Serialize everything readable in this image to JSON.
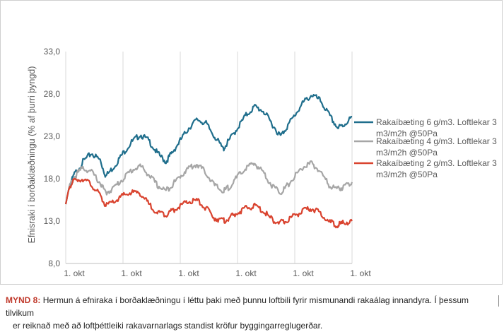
{
  "chart_data": {
    "type": "line",
    "title": "",
    "ylabel": "Efnisraki í borðaklæðningu (% af þurri þyngd)",
    "xlabel": "",
    "ylim": [
      8.0,
      33.0
    ],
    "yticks": [
      8.0,
      13.0,
      18.0,
      23.0,
      28.0,
      33.0
    ],
    "ytick_labels": [
      "8,0",
      "13,0",
      "18,0",
      "23,0",
      "28,0",
      "33,0"
    ],
    "xlim": [
      0,
      5
    ],
    "xticks": [
      0,
      1,
      2,
      3,
      4,
      5
    ],
    "xtick_labels": [
      "1. okt",
      "1. okt",
      "1. okt",
      "1. okt",
      "1. okt",
      "1. okt"
    ],
    "grid": "vertical",
    "legend": "right",
    "series": [
      {
        "name": "Rakaíbæting 6 g/m3. Loftlekar 3 m3/m2h @50Pa",
        "color": "#1f6e8c",
        "x": [
          0,
          0.06,
          0.15,
          0.3,
          0.45,
          0.6,
          0.7,
          0.85,
          1.0,
          1.15,
          1.3,
          1.45,
          1.6,
          1.75,
          1.85,
          2.0,
          2.15,
          2.3,
          2.45,
          2.6,
          2.75,
          2.85,
          3.0,
          3.15,
          3.3,
          3.45,
          3.6,
          3.75,
          3.85,
          4.0,
          4.15,
          4.3,
          4.45,
          4.6,
          4.75,
          4.85,
          5.0
        ],
        "y": [
          15.0,
          17.0,
          18.5,
          20.0,
          21.0,
          20.2,
          18.3,
          19.5,
          21.0,
          22.3,
          23.2,
          22.5,
          21.0,
          20.0,
          21.0,
          22.5,
          24.0,
          25.0,
          24.5,
          23.0,
          21.5,
          22.5,
          24.0,
          25.5,
          26.5,
          26.0,
          24.5,
          23.0,
          24.0,
          25.5,
          27.0,
          27.9,
          27.2,
          25.5,
          24.0,
          24.3,
          25.3
        ]
      },
      {
        "name": "Rakaíbæting 4 g/m3. Loftlekar 3 m3/m2h @50Pa",
        "color": "#a6a6a6",
        "x": [
          0,
          0.06,
          0.15,
          0.3,
          0.45,
          0.6,
          0.7,
          0.85,
          1.0,
          1.15,
          1.3,
          1.45,
          1.6,
          1.75,
          1.85,
          2.0,
          2.15,
          2.3,
          2.45,
          2.6,
          2.75,
          2.85,
          3.0,
          3.15,
          3.3,
          3.45,
          3.6,
          3.75,
          3.85,
          4.0,
          4.15,
          4.3,
          4.45,
          4.6,
          4.75,
          4.85,
          5.0
        ],
        "y": [
          15.0,
          17.0,
          18.2,
          19.3,
          18.8,
          17.5,
          16.3,
          17.0,
          18.0,
          19.0,
          19.5,
          18.5,
          17.2,
          16.6,
          17.2,
          18.3,
          19.3,
          19.7,
          18.7,
          17.2,
          16.5,
          17.0,
          18.2,
          19.3,
          19.8,
          18.8,
          17.2,
          16.4,
          17.0,
          18.3,
          19.4,
          19.8,
          18.8,
          17.2,
          16.8,
          17.0,
          17.6
        ]
      },
      {
        "name": "Rakaíbæting 2 g/m3. Loftlekar 3 m3/m2h @50Pa",
        "color": "#d9432f",
        "x": [
          0,
          0.06,
          0.15,
          0.3,
          0.45,
          0.6,
          0.7,
          0.85,
          1.0,
          1.15,
          1.3,
          1.45,
          1.6,
          1.75,
          1.85,
          2.0,
          2.15,
          2.3,
          2.45,
          2.6,
          2.75,
          2.85,
          3.0,
          3.15,
          3.3,
          3.45,
          3.6,
          3.75,
          3.85,
          4.0,
          4.15,
          4.3,
          4.45,
          4.6,
          4.75,
          4.85,
          5.0
        ],
        "y": [
          15.0,
          17.0,
          17.8,
          18.0,
          17.3,
          16.0,
          14.8,
          15.3,
          16.0,
          16.4,
          16.3,
          15.0,
          14.0,
          13.8,
          14.2,
          14.8,
          15.3,
          15.4,
          14.5,
          13.4,
          13.0,
          13.3,
          14.0,
          14.5,
          14.8,
          14.2,
          13.2,
          12.8,
          13.0,
          13.7,
          14.2,
          14.5,
          13.9,
          12.9,
          12.5,
          12.8,
          13.0
        ]
      }
    ]
  },
  "caption": {
    "label": "MYND 8:",
    "line1": "Hermun á efniraka í borðaklæðningu í léttu þaki með þunnu loftbili fyrir mismunandi rakaálag innandyra. Í þessum tilvikum",
    "line2": "er reiknað með að loftþéttleiki rakavarnarlags standist kröfur byggingarreglugerðar."
  }
}
